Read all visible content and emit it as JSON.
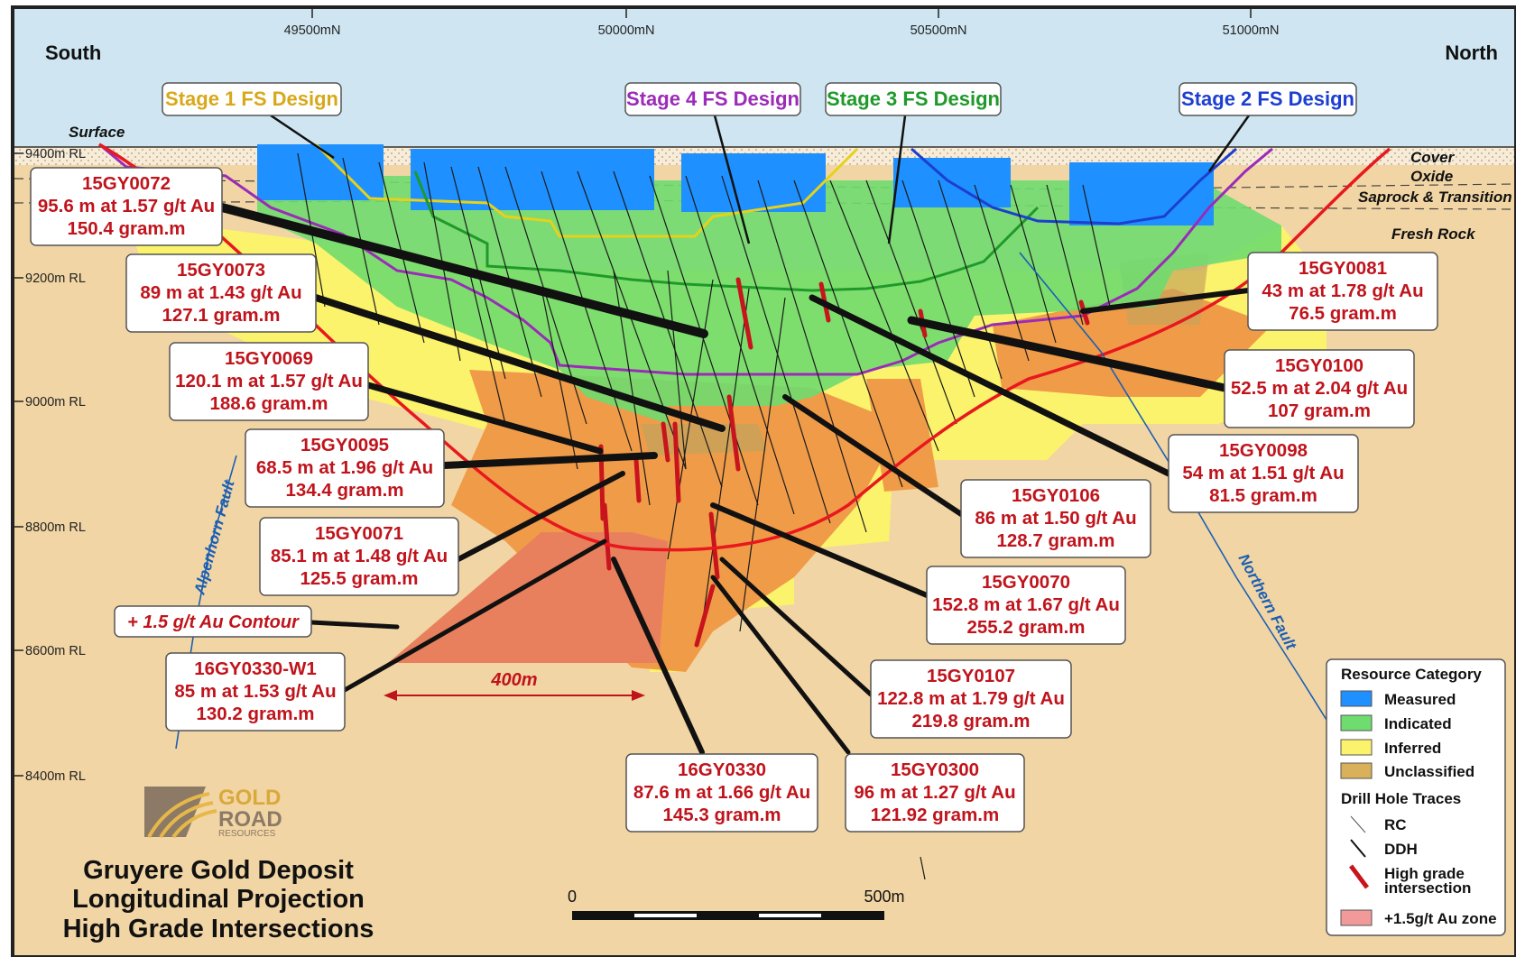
{
  "directions": {
    "south": "South",
    "north": "North",
    "surface": "Surface"
  },
  "axis": {
    "northings": [
      "49500mN",
      "50000mN",
      "50500mN",
      "51000mN"
    ],
    "rl": [
      "9400m RL",
      "9200m RL",
      "9000m RL",
      "8800m RL",
      "8600m RL",
      "8400m RL"
    ]
  },
  "layers": [
    "Cover",
    "Oxide",
    "Saprock & Transition",
    "Fresh Rock"
  ],
  "faults": {
    "alpenhorn": "Alpenhorn Fault",
    "northern": "Northern Fault"
  },
  "stages": [
    {
      "label": "Stage 1 FS Design",
      "color": "#d8a81a"
    },
    {
      "label": "Stage 4 FS Design",
      "color": "#9b2bb8"
    },
    {
      "label": "Stage 3 FS Design",
      "color": "#1f9a2a"
    },
    {
      "label": "Stage 2 FS Design",
      "color": "#1c3fd0"
    }
  ],
  "intersections": [
    {
      "hole": "15GY0072",
      "interval": "95.6 m at 1.57 g/t Au",
      "grade": "150.4 gram.m"
    },
    {
      "hole": "15GY0073",
      "interval": "89 m at 1.43 g/t Au",
      "grade": "127.1 gram.m"
    },
    {
      "hole": "15GY0069",
      "interval": "120.1 m at 1.57 g/t Au",
      "grade": "188.6 gram.m"
    },
    {
      "hole": "15GY0095",
      "interval": "68.5 m at 1.96 g/t Au",
      "grade": "134.4 gram.m"
    },
    {
      "hole": "15GY0071",
      "interval": "85.1 m at 1.48 g/t Au",
      "grade": "125.5 gram.m"
    },
    {
      "hole": "16GY0330-W1",
      "interval": "85 m at 1.53 g/t Au",
      "grade": "130.2 gram.m"
    },
    {
      "hole": "16GY0330",
      "interval": "87.6 m at 1.66 g/t Au",
      "grade": "145.3 gram.m"
    },
    {
      "hole": "15GY0300",
      "interval": "96 m at 1.27 g/t Au",
      "grade": "121.92 gram.m"
    },
    {
      "hole": "15GY0107",
      "interval": "122.8 m at 1.79 g/t Au",
      "grade": "219.8 gram.m"
    },
    {
      "hole": "15GY0070",
      "interval": "152.8 m at 1.67 g/t Au",
      "grade": "255.2 gram.m"
    },
    {
      "hole": "15GY0106",
      "interval": "86 m at 1.50 g/t Au",
      "grade": "128.7 gram.m"
    },
    {
      "hole": "15GY0098",
      "interval": "54 m at 1.51 g/t Au",
      "grade": "81.5 gram.m"
    },
    {
      "hole": "15GY0100",
      "interval": "52.5 m at 2.04 g/t Au",
      "grade": "107 gram.m"
    },
    {
      "hole": "15GY0081",
      "interval": "43 m at 1.78 g/t Au",
      "grade": "76.5 gram.m"
    }
  ],
  "contour_label": "+ 1.5 g/t Au Contour",
  "dimension_label": "400m",
  "scale_bar": {
    "start": "0",
    "end": "500m"
  },
  "logo": {
    "line1": "GOLD",
    "line2": "ROAD",
    "line3": "RESOURCES"
  },
  "title": {
    "line1": "Gruyere Gold Deposit",
    "line2": "Longitudinal Projection",
    "line3": "High Grade Intersections"
  },
  "legend": {
    "resource_heading": "Resource Category",
    "categories": [
      {
        "label": "Measured",
        "color": "#1e90ff"
      },
      {
        "label": "Indicated",
        "color": "#6fdc6f"
      },
      {
        "label": "Inferred",
        "color": "#fbf36b"
      },
      {
        "label": "Unclassified",
        "color": "#d8b15a"
      }
    ],
    "drill_heading": "Drill Hole Traces",
    "drill_items": [
      "RC",
      "DDH",
      "High grade intersection"
    ],
    "zone_label": "+1.5g/t Au zone"
  },
  "colors": {
    "background": "#f2d5a4",
    "sky": "#cfe6f2",
    "measured": "#1e90ff",
    "indicated": "#6fdc6f",
    "inferred": "#fbf36b",
    "unclassified": "#d8b15a",
    "orange_zone": "#f09b48",
    "salmon_zone": "#e8805e",
    "contour": "#e8181e",
    "high_grade": "#c8141c"
  }
}
